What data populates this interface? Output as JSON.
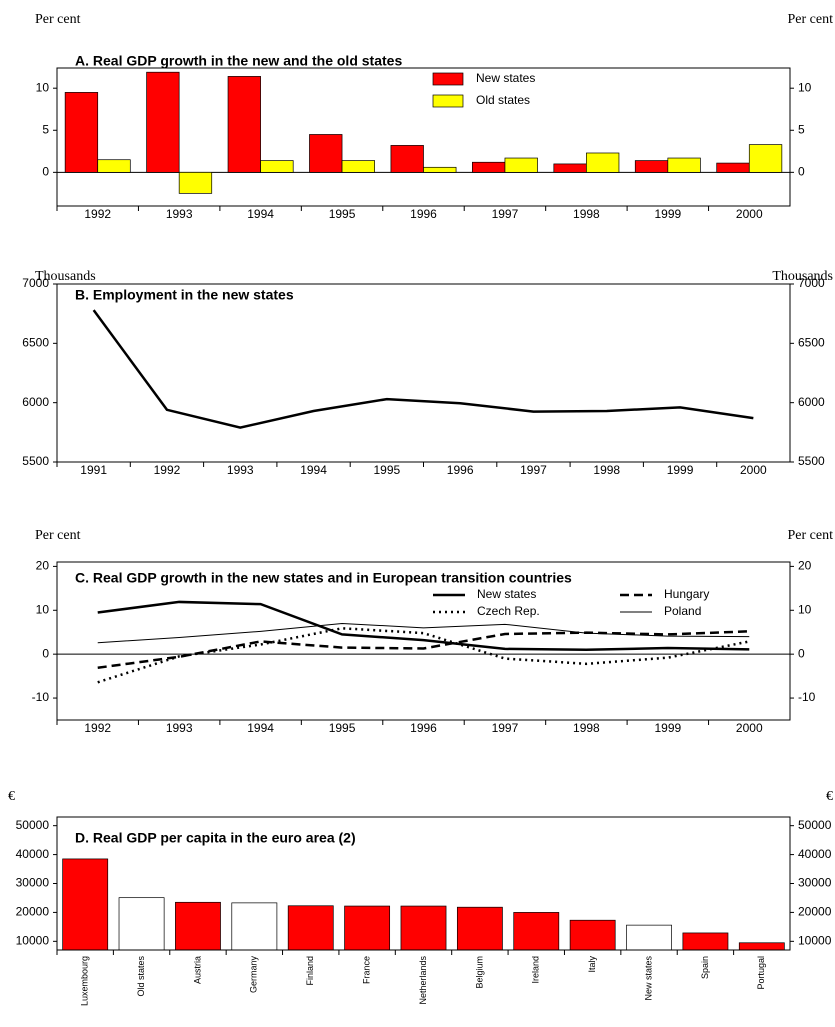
{
  "chart_data": [
    {
      "type": "bar",
      "title": "A. Real GDP growth in the new and the old states",
      "unit_left": "Per cent",
      "unit_right": "Per cent",
      "categories": [
        "1992",
        "1993",
        "1994",
        "1995",
        "1996",
        "1997",
        "1998",
        "1999",
        "2000"
      ],
      "series": [
        {
          "name": "New states",
          "color": "#ff0000",
          "values": [
            9.5,
            11.9,
            11.4,
            4.5,
            3.2,
            1.2,
            1.0,
            1.4,
            1.1
          ]
        },
        {
          "name": "Old states",
          "color": "#ffff00",
          "values": [
            1.5,
            -2.5,
            1.4,
            1.4,
            0.6,
            1.7,
            2.3,
            1.7,
            3.3
          ]
        }
      ],
      "ylim": [
        -4,
        12.4
      ],
      "yticks": [
        0,
        5,
        10
      ],
      "legend": "upper center"
    },
    {
      "type": "line",
      "title": "B. Employment in the new states",
      "unit_left": "Thousands",
      "unit_right": "Thousands",
      "categories": [
        "1991",
        "1992",
        "1993",
        "1994",
        "1995",
        "1996",
        "1997",
        "1998",
        "1999",
        "2000"
      ],
      "series": [
        {
          "color": "#000000",
          "style": "solid",
          "width": 2.5,
          "values": [
            6780,
            5940,
            5790,
            5930,
            6030,
            5995,
            5925,
            5930,
            5960,
            5870
          ]
        }
      ],
      "ylim": [
        5500,
        7000
      ],
      "yticks": [
        5500,
        6000,
        6500,
        7000
      ]
    },
    {
      "type": "line",
      "title": "C. Real GDP growth in the new states and in European transition countries",
      "unit_left": "Per cent",
      "unit_right": "Per cent",
      "categories": [
        "1992",
        "1993",
        "1994",
        "1995",
        "1996",
        "1997",
        "1998",
        "1999",
        "2000"
      ],
      "series": [
        {
          "name": "New states",
          "color": "#000000",
          "style": "solid",
          "width": 2.5,
          "values": [
            9.5,
            11.9,
            11.4,
            4.5,
            3.2,
            1.2,
            1.0,
            1.4,
            1.1
          ]
        },
        {
          "name": "Hungary",
          "color": "#000000",
          "style": "dashed",
          "width": 2.5,
          "values": [
            -3.1,
            -0.6,
            2.9,
            1.5,
            1.3,
            4.6,
            4.9,
            4.5,
            5.2
          ]
        },
        {
          "name": "Czech Rep.",
          "color": "#000000",
          "style": "dotted",
          "width": 2.5,
          "values": [
            -6.4,
            -0.5,
            2.2,
            5.9,
            4.8,
            -1.0,
            -2.2,
            -0.8,
            2.9
          ]
        },
        {
          "name": "Poland",
          "color": "#000000",
          "style": "solid",
          "width": 1,
          "values": [
            2.6,
            3.8,
            5.2,
            7.0,
            6.0,
            6.8,
            4.8,
            4.1,
            4.0
          ]
        }
      ],
      "ylim": [
        -15,
        21
      ],
      "yticks": [
        -10,
        0,
        10,
        20
      ],
      "legend": "upper center"
    },
    {
      "type": "bar",
      "title": "D. Real GDP per capita in the euro area (2)",
      "unit_left": "€",
      "unit_right": "€",
      "categories": [
        "Luxembourg",
        "Old states",
        "Austria",
        "Germany",
        "Finland",
        "France",
        "Netherlands",
        "Belgium",
        "Ireland",
        "Italy",
        "New states",
        "Spain",
        "Portugal"
      ],
      "values": [
        38500,
        25100,
        23500,
        23300,
        22300,
        22200,
        22200,
        21800,
        20000,
        17300,
        15600,
        12900,
        9500
      ],
      "colors": [
        "#ff0000",
        "#ffffff",
        "#ff0000",
        "#ffffff",
        "#ff0000",
        "#ff0000",
        "#ff0000",
        "#ff0000",
        "#ff0000",
        "#ff0000",
        "#ffffff",
        "#ff0000",
        "#ff0000"
      ],
      "ylim": [
        7000,
        53000
      ],
      "yticks": [
        10000,
        20000,
        30000,
        40000,
        50000
      ]
    }
  ]
}
